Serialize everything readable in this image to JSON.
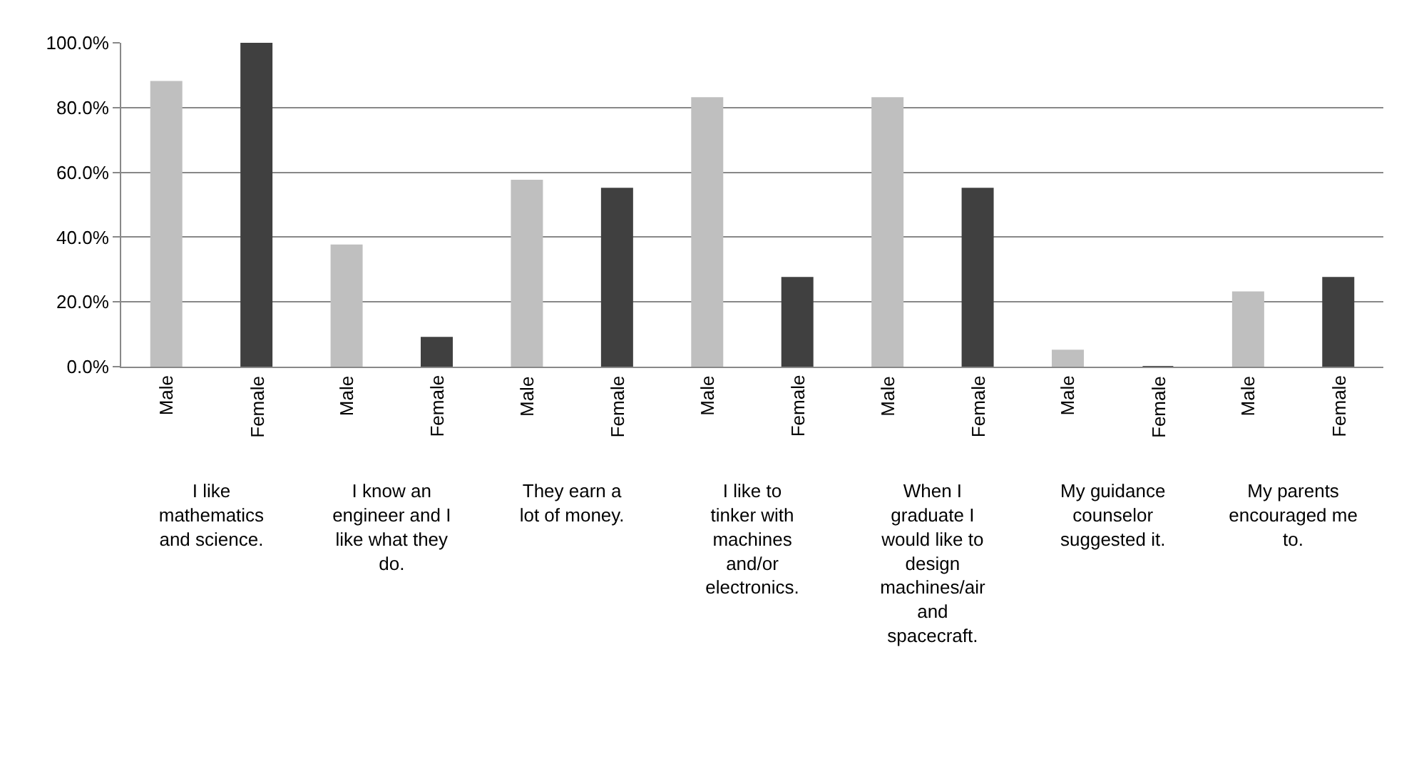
{
  "chart_data": {
    "type": "bar",
    "categories": [
      "I like mathematics and science.",
      "I know an engineer and I like what they do.",
      "They earn a lot of money.",
      "I like to tinker with machines and/or electronics.",
      "When I graduate I would like to design machines/air and spacecraft.",
      "My guidance counselor suggested it.",
      "My parents encouraged me to."
    ],
    "series": [
      {
        "name": "Male",
        "color": "#bfbfbf",
        "values": [
          88,
          37.5,
          57.5,
          83,
          83,
          5,
          23
        ]
      },
      {
        "name": "Female",
        "color": "#404040",
        "values": [
          100,
          9,
          55,
          27.5,
          55,
          0,
          27.5
        ]
      }
    ],
    "ylim": [
      0,
      100
    ],
    "yticks": [
      {
        "value": 0,
        "label": "0.0%"
      },
      {
        "value": 20,
        "label": "20.0%"
      },
      {
        "value": 40,
        "label": "40.0%"
      },
      {
        "value": 60,
        "label": "60.0%"
      },
      {
        "value": 80,
        "label": "80.0%"
      },
      {
        "value": 100,
        "label": "100.0%"
      }
    ],
    "grid": "y",
    "legend": false
  }
}
